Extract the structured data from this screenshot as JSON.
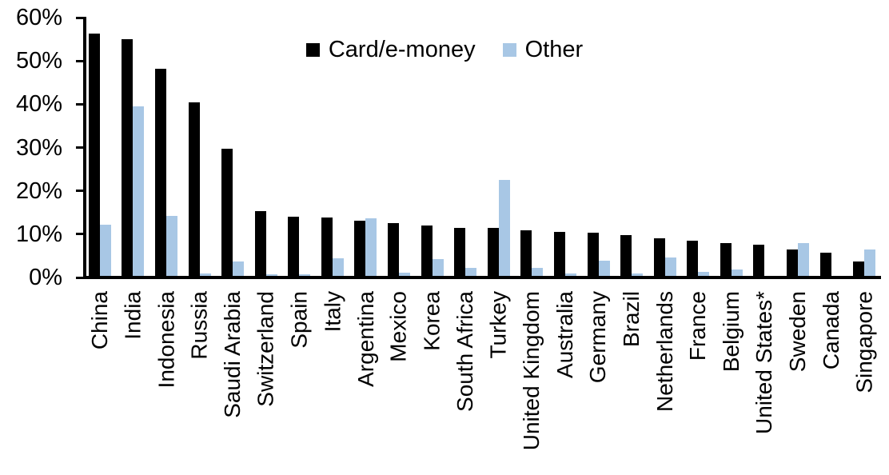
{
  "chart_data": {
    "type": "bar",
    "title": "",
    "xlabel": "",
    "ylabel": "",
    "categories": [
      "China",
      "India",
      "Indonesia",
      "Russia",
      "Saudi Arabia",
      "Switzerland",
      "Spain",
      "Italy",
      "Argentina",
      "Mexico",
      "Korea",
      "South Africa",
      "Turkey",
      "United Kingdom",
      "Australia",
      "Germany",
      "Brazil",
      "Netherlands",
      "France",
      "Belgium",
      "United States*",
      "Sweden",
      "Canada",
      "Singapore"
    ],
    "series": [
      {
        "name": "Card/e-money",
        "color": "#000000",
        "values": [
          56.3,
          55.1,
          48.2,
          40.5,
          29.7,
          15.4,
          14.0,
          13.9,
          13.2,
          12.6,
          12.0,
          11.5,
          11.4,
          10.9,
          10.6,
          10.4,
          9.8,
          9.0,
          8.5,
          7.9,
          7.6,
          6.4,
          5.7,
          3.7
        ]
      },
      {
        "name": "Other",
        "color": "#A8C7E5",
        "values": [
          12.2,
          39.6,
          14.3,
          0.9,
          3.7,
          0.7,
          0.8,
          4.4,
          13.7,
          1.1,
          4.3,
          2.3,
          22.5,
          2.2,
          1.0,
          3.8,
          1.0,
          4.6,
          1.3,
          1.8,
          0.3,
          7.9,
          0,
          6.4
        ]
      }
    ],
    "y_axis": {
      "min": 0,
      "max": 60,
      "step": 10,
      "tick_labels": [
        "0%",
        "10%",
        "20%",
        "30%",
        "40%",
        "50%",
        "60%"
      ]
    },
    "legend_position": "top-center",
    "grid": false,
    "axis_color": "#000000"
  }
}
